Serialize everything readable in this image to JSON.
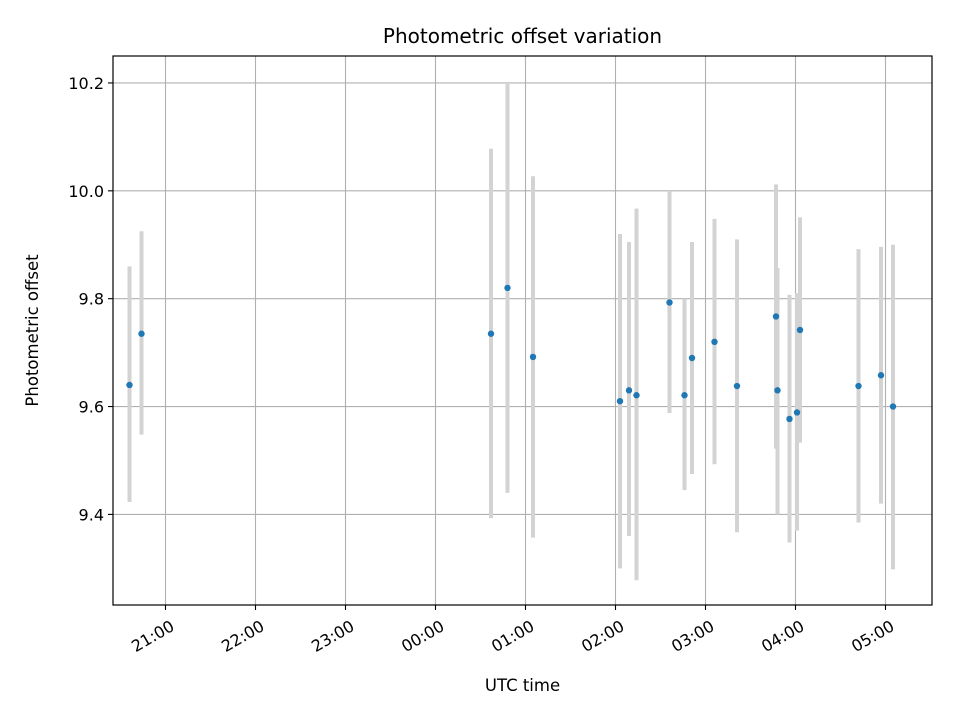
{
  "chart_data": {
    "type": "scatter",
    "title": "Photometric offset variation",
    "xlabel": "UTC time",
    "ylabel": "Photometric offset",
    "x_axis": {
      "kind": "time",
      "range": [
        "20:25",
        "05:31"
      ],
      "ticks": [
        "21:00",
        "22:00",
        "23:00",
        "00:00",
        "01:00",
        "02:00",
        "03:00",
        "04:00",
        "05:00"
      ]
    },
    "y_axis": {
      "range": [
        9.232,
        10.25
      ],
      "ticks": [
        "9.4",
        "9.6",
        "9.8",
        "10.0",
        "10.2"
      ]
    },
    "grid": true,
    "legend": null,
    "colors": {
      "marker": "#1f77b4",
      "errorbar": "#d3d3d3",
      "grid": "#b0b0b0"
    },
    "points": [
      {
        "time": "20:36",
        "y": 9.64,
        "err_low": 9.423,
        "err_high": 9.86
      },
      {
        "time": "20:44",
        "y": 9.735,
        "err_low": 9.548,
        "err_high": 9.925
      },
      {
        "time": "00:37",
        "y": 9.735,
        "err_low": 9.393,
        "err_high": 10.078
      },
      {
        "time": "00:48",
        "y": 9.82,
        "err_low": 9.44,
        "err_high": 10.2
      },
      {
        "time": "01:05",
        "y": 9.692,
        "err_low": 9.357,
        "err_high": 10.027
      },
      {
        "time": "02:03",
        "y": 9.61,
        "err_low": 9.3,
        "err_high": 9.92
      },
      {
        "time": "02:09",
        "y": 9.63,
        "err_low": 9.36,
        "err_high": 9.905
      },
      {
        "time": "02:14",
        "y": 9.621,
        "err_low": 9.278,
        "err_high": 9.967
      },
      {
        "time": "02:36",
        "y": 9.793,
        "err_low": 9.588,
        "err_high": 10.0
      },
      {
        "time": "02:46",
        "y": 9.621,
        "err_low": 9.445,
        "err_high": 9.8
      },
      {
        "time": "02:51",
        "y": 9.69,
        "err_low": 9.475,
        "err_high": 9.905
      },
      {
        "time": "03:06",
        "y": 9.72,
        "err_low": 9.493,
        "err_high": 9.948
      },
      {
        "time": "03:21",
        "y": 9.638,
        "err_low": 9.367,
        "err_high": 9.91
      },
      {
        "time": "03:47",
        "y": 9.767,
        "err_low": 9.522,
        "err_high": 10.012
      },
      {
        "time": "03:48",
        "y": 9.63,
        "err_low": 9.4,
        "err_high": 9.857
      },
      {
        "time": "03:56",
        "y": 9.577,
        "err_low": 9.348,
        "err_high": 9.807
      },
      {
        "time": "04:01",
        "y": 9.589,
        "err_low": 9.37,
        "err_high": 9.81
      },
      {
        "time": "04:03",
        "y": 9.742,
        "err_low": 9.533,
        "err_high": 9.951
      },
      {
        "time": "04:42",
        "y": 9.638,
        "err_low": 9.385,
        "err_high": 9.892
      },
      {
        "time": "04:57",
        "y": 9.658,
        "err_low": 9.42,
        "err_high": 9.896
      },
      {
        "time": "05:05",
        "y": 9.6,
        "err_low": 9.298,
        "err_high": 9.9
      }
    ]
  }
}
